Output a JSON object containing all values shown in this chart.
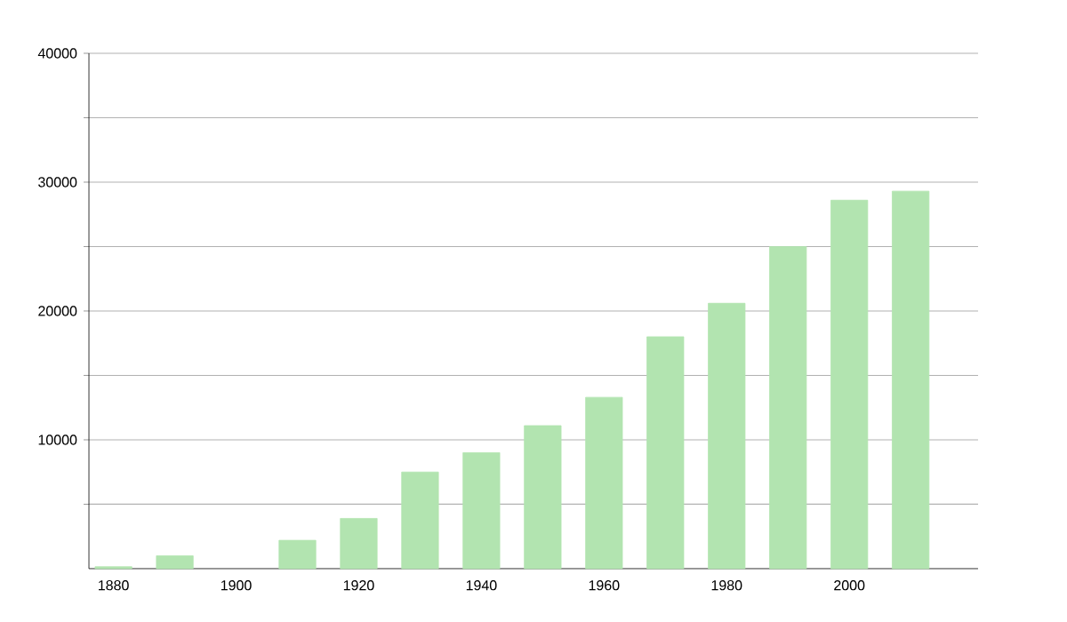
{
  "chart_data": {
    "type": "bar",
    "x": [
      1880,
      1890,
      1900,
      1910,
      1920,
      1930,
      1940,
      1950,
      1960,
      1970,
      1980,
      1990,
      2000,
      2010
    ],
    "values": [
      150,
      1000,
      null,
      2200,
      3900,
      7500,
      9000,
      11100,
      13300,
      18000,
      20600,
      25000,
      28600,
      29300
    ],
    "color": "#b2e4b0",
    "xlim": [
      1876,
      2021
    ],
    "xticks": [
      1880,
      1900,
      1920,
      1940,
      1960,
      1980,
      2000
    ],
    "ylim": [
      0,
      40000
    ],
    "yticks": [
      {
        "value": 5000,
        "label": null
      },
      10000,
      {
        "value": 15000,
        "label": null
      },
      20000,
      {
        "value": 25000,
        "label": null
      },
      30000,
      {
        "value": 35000,
        "label": null
      },
      40000
    ],
    "grid": "y"
  }
}
